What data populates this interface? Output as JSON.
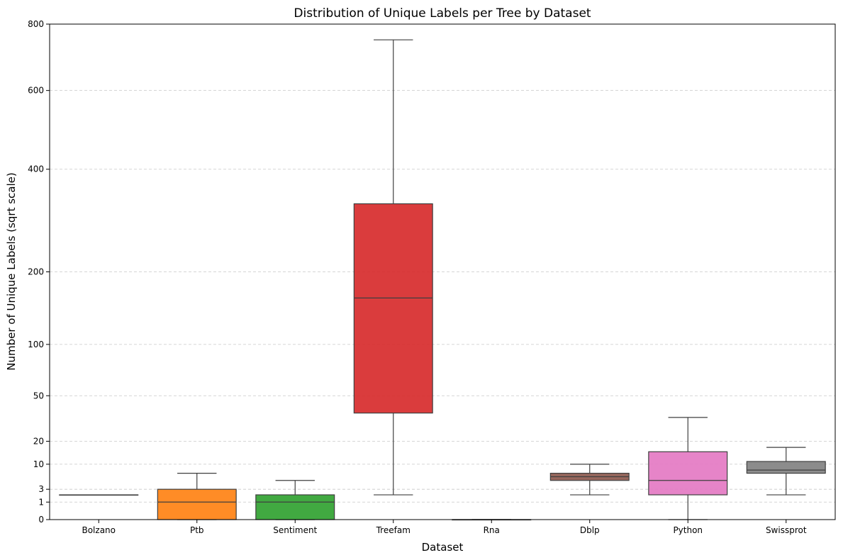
{
  "chart_data": {
    "type": "box",
    "title": "Distribution of Unique Labels per Tree by Dataset",
    "xlabel": "Dataset",
    "ylabel": "Number of Unique Labels (sqrt scale)",
    "yscale": "sqrt",
    "ylim": [
      0,
      800
    ],
    "yticks": [
      0,
      1,
      3,
      10,
      20,
      50,
      100,
      200,
      400,
      600,
      800
    ],
    "grid": "y-dashed",
    "categories": [
      "Bolzano",
      "Ptb",
      "Sentiment",
      "Treefam",
      "Rna",
      "Dblp",
      "Python",
      "Swissprot"
    ],
    "boxes": [
      {
        "category": "Bolzano",
        "whisker_low": 2,
        "q1": 2,
        "median": 2,
        "q3": 2,
        "whisker_high": 2,
        "color": "#1f77b4"
      },
      {
        "category": "Ptb",
        "whisker_low": 0,
        "q1": 0,
        "median": 1,
        "q3": 3,
        "whisker_high": 7,
        "color": "#ff7f0e"
      },
      {
        "category": "Sentiment",
        "whisker_low": 0,
        "q1": 0,
        "median": 1,
        "q3": 2,
        "whisker_high": 5,
        "color": "#2ca02c"
      },
      {
        "category": "Treefam",
        "whisker_low": 2,
        "q1": 37,
        "median": 160,
        "q3": 325,
        "whisker_high": 750,
        "color": "#d62728"
      },
      {
        "category": "Rna",
        "whisker_low": 0,
        "q1": 0,
        "median": 0,
        "q3": 0,
        "whisker_high": 0,
        "color": "#9467bd"
      },
      {
        "category": "Dblp",
        "whisker_low": 2,
        "q1": 5,
        "median": 6,
        "q3": 7,
        "whisker_high": 10,
        "color": "#8c564b"
      },
      {
        "category": "Python",
        "whisker_low": 0,
        "q1": 2,
        "median": 5,
        "q3": 15,
        "whisker_high": 34,
        "color": "#e377c2"
      },
      {
        "category": "Swissprot",
        "whisker_low": 2,
        "q1": 7,
        "median": 8,
        "q3": 11,
        "whisker_high": 17,
        "color": "#7f7f7f"
      }
    ]
  }
}
